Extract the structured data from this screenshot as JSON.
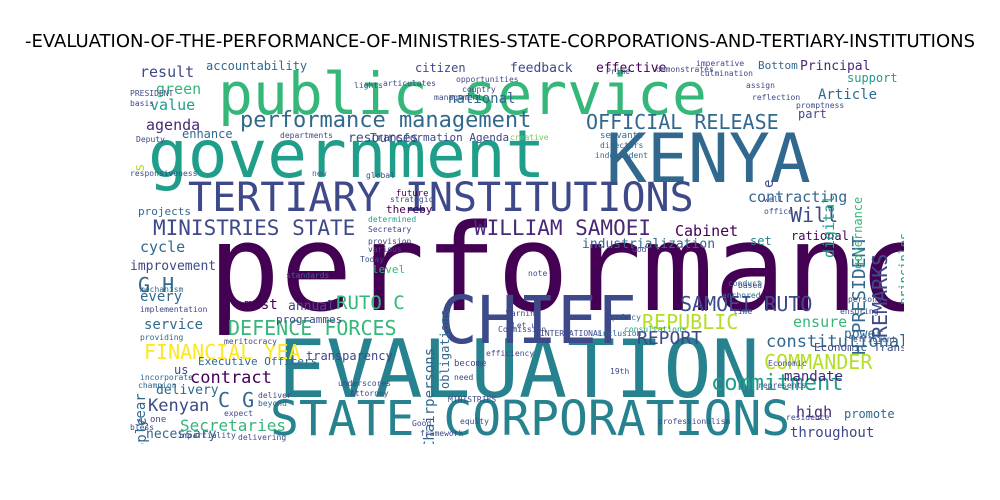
{
  "title": "-EVALUATION-OF-THE-PERFORMANCE-OF-MINISTRIES-STATE-CORPORATIONS-AND-TERTIARY-INSTITUTIONS",
  "palette": [
    "#440154",
    "#482878",
    "#3e4989",
    "#31688e",
    "#26828e",
    "#1f9e89",
    "#35b779",
    "#6ece58",
    "#b5de2b",
    "#fde725"
  ],
  "words": [
    {
      "text": "performance",
      "color": "#440154"
    },
    {
      "text": "public service",
      "color": "#35b779"
    },
    {
      "text": "government",
      "color": "#1f9e89"
    },
    {
      "text": "KENYA",
      "color": "#31688e"
    },
    {
      "text": "EVALUATION",
      "color": "#26828e"
    },
    {
      "text": "CHIEF",
      "color": "#3e4989"
    },
    {
      "text": "STATE CORPORATIONS",
      "color": "#26828e"
    },
    {
      "text": "TERTIARY INSTITUTIONS",
      "color": "#3e4989"
    },
    {
      "text": "performance management",
      "color": "#31688e"
    },
    {
      "text": "OFFICIAL RELEASE",
      "color": "#31688e"
    },
    {
      "text": "MINISTRIES STATE",
      "color": "#3e4989"
    },
    {
      "text": "WILLIAM SAMOEI",
      "color": "#482878"
    },
    {
      "text": "DEFENCE FORCES",
      "color": "#35b779"
    },
    {
      "text": "FINANCIAL YEA",
      "color": "#fde725"
    },
    {
      "text": "SAMOEI RUTO",
      "color": "#3e4989"
    },
    {
      "text": "REPUBLIC",
      "color": "#b5de2b"
    },
    {
      "text": "REPORT",
      "color": "#3e4989"
    },
    {
      "text": "commitment",
      "color": "#1f9e89"
    },
    {
      "text": "COMMANDER",
      "color": "#b5de2b"
    },
    {
      "text": "constitutional",
      "color": "#31688e"
    },
    {
      "text": "contract",
      "color": "#440154"
    },
    {
      "text": "Secretaries",
      "color": "#35b779"
    },
    {
      "text": "throughout",
      "color": "#3e4989"
    },
    {
      "text": "mandate",
      "color": "#482878"
    },
    {
      "text": "Kenyan",
      "color": "#3e4989"
    },
    {
      "text": "RUTO C",
      "color": "#35b779"
    },
    {
      "text": "C G",
      "color": "#31688e"
    },
    {
      "text": "G H",
      "color": "#31688e"
    },
    {
      "text": "Cabinet",
      "color": "#440154"
    },
    {
      "text": "contracting",
      "color": "#31688e"
    },
    {
      "text": "Will",
      "color": "#3e4989"
    },
    {
      "text": "high",
      "color": "#482878"
    },
    {
      "text": "ensure",
      "color": "#35b779"
    },
    {
      "text": "promote",
      "color": "#31688e"
    },
    {
      "text": "agenda",
      "color": "#482878"
    },
    {
      "text": "value",
      "color": "#1f9e89"
    },
    {
      "text": "green",
      "color": "#35b779"
    },
    {
      "text": "result",
      "color": "#3e4989"
    },
    {
      "text": "accountability",
      "color": "#31688e"
    },
    {
      "text": "citizen",
      "color": "#3e4989"
    },
    {
      "text": "feedback",
      "color": "#3e4989"
    },
    {
      "text": "effective",
      "color": "#440154"
    },
    {
      "text": "Bottom",
      "color": "#31688e"
    },
    {
      "text": "Principal",
      "color": "#482878"
    },
    {
      "text": "support",
      "color": "#1f9e89"
    },
    {
      "text": "Article",
      "color": "#31688e"
    },
    {
      "text": "national",
      "color": "#31688e"
    },
    {
      "text": "resources",
      "color": "#3e4989"
    },
    {
      "text": "enhance",
      "color": "#31688e"
    },
    {
      "text": "cycle",
      "color": "#31688e"
    },
    {
      "text": "improvement",
      "color": "#3e4989"
    },
    {
      "text": "every",
      "color": "#31688e"
    },
    {
      "text": "projects",
      "color": "#31688e"
    },
    {
      "text": "industrialization",
      "color": "#31688e"
    },
    {
      "text": "thereby",
      "color": "#440154"
    },
    {
      "text": "future",
      "color": "#440154"
    },
    {
      "text": "set",
      "color": "#26828e"
    },
    {
      "text": "part",
      "color": "#3e4989"
    },
    {
      "text": "rational",
      "color": "#440154"
    },
    {
      "text": "annual",
      "color": "#3e4989"
    },
    {
      "text": "must",
      "color": "#440154"
    },
    {
      "text": "programmes",
      "color": "#3e4989"
    },
    {
      "text": "transparency",
      "color": "#3e4989"
    },
    {
      "text": "level",
      "color": "#35b779"
    },
    {
      "text": "service",
      "color": "#31688e"
    },
    {
      "text": "delivery",
      "color": "#31688e"
    },
    {
      "text": "us",
      "color": "#3e4989"
    },
    {
      "text": "Executive Officers",
      "color": "#31688e"
    },
    {
      "text": "power",
      "color": "#31688e"
    },
    {
      "text": "Economic Transformation",
      "color": "#3e4989"
    },
    {
      "text": "necessary",
      "color": "#31688e"
    },
    {
      "text": "Transformation Agenda",
      "color": "#3e4989"
    },
    {
      "text": "departments",
      "color": "#3e4989"
    },
    {
      "text": "year",
      "color": "#31688e"
    },
    {
      "text": "people",
      "color": "#31688e"
    },
    {
      "text": "Chairpersons",
      "color": "#31688e"
    },
    {
      "text": "obligations",
      "color": "#31688e"
    },
    {
      "text": "REMARKS",
      "color": "#3e4989"
    },
    {
      "text": "H PRESIDENT",
      "color": "#31688e"
    },
    {
      "text": "digital",
      "color": "#1f9e89"
    },
    {
      "text": "governance",
      "color": "#35b779"
    },
    {
      "text": "principles",
      "color": "#1f9e89"
    },
    {
      "text": "e",
      "color": "#3e4989"
    },
    {
      "text": "s",
      "color": "#b5de2b"
    },
    {
      "text": "opportunities",
      "color": "#3e4989"
    },
    {
      "text": "country",
      "color": "#3e4989"
    },
    {
      "text": "creative",
      "color": "#6ece58"
    },
    {
      "text": "servants",
      "color": "#31688e"
    },
    {
      "text": "directors",
      "color": "#31688e"
    },
    {
      "text": "independent",
      "color": "#31688e"
    },
    {
      "text": "strategic",
      "color": "#3e4989"
    },
    {
      "text": "global",
      "color": "#3e4989"
    },
    {
      "text": "new",
      "color": "#31688e"
    },
    {
      "text": "Secretary",
      "color": "#3e4989"
    },
    {
      "text": "determined",
      "color": "#1f9e89"
    },
    {
      "text": "provision",
      "color": "#3e4989"
    },
    {
      "text": "various",
      "color": "#3e4989"
    },
    {
      "text": "Today",
      "color": "#3e4989"
    },
    {
      "text": "standards",
      "color": "#31688e"
    },
    {
      "text": "mechanism",
      "color": "#31688e"
    },
    {
      "text": "implementation",
      "color": "#3e4989"
    },
    {
      "text": "providing",
      "color": "#31688e"
    },
    {
      "text": "incorporate",
      "color": "#31688e"
    },
    {
      "text": "champion",
      "color": "#31688e"
    },
    {
      "text": "expect",
      "color": "#3e4989"
    },
    {
      "text": "beyond",
      "color": "#31688e"
    },
    {
      "text": "deliver",
      "color": "#3e4989"
    },
    {
      "text": "become",
      "color": "#3e4989"
    },
    {
      "text": "need",
      "color": "#3e4989"
    },
    {
      "text": "efficiency",
      "color": "#3e4989"
    },
    {
      "text": "note",
      "color": "#3e4989"
    },
    {
      "text": "God",
      "color": "#3e4989"
    },
    {
      "text": "consultations",
      "color": "#1f9e89"
    },
    {
      "text": "inclusion",
      "color": "#31688e"
    },
    {
      "text": "policy",
      "color": "#31688e"
    },
    {
      "text": "conduct",
      "color": "#31688e"
    },
    {
      "text": "anchored",
      "color": "#31688e"
    },
    {
      "text": "based",
      "color": "#3e4989"
    },
    {
      "text": "time",
      "color": "#3e4989"
    },
    {
      "text": "persons",
      "color": "#3e4989"
    },
    {
      "text": "ensuring",
      "color": "#3e4989"
    },
    {
      "text": "efficient",
      "color": "#3e4989"
    },
    {
      "text": "well",
      "color": "#3e4989"
    },
    {
      "text": "office",
      "color": "#3e4989"
    },
    {
      "text": "assign",
      "color": "#3e4989"
    },
    {
      "text": "reflection",
      "color": "#3e4989"
    },
    {
      "text": "promptness",
      "color": "#3e4989"
    },
    {
      "text": "PRESIDENT",
      "color": "#3e4989"
    },
    {
      "text": "basis",
      "color": "#3e4989"
    },
    {
      "text": "Deputy",
      "color": "#3e4989"
    },
    {
      "text": "lights",
      "color": "#3e4989"
    },
    {
      "text": "articulates",
      "color": "#3e4989"
    },
    {
      "text": "management",
      "color": "#3e4989"
    },
    {
      "text": "imperative",
      "color": "#3e4989"
    },
    {
      "text": "culmination",
      "color": "#3e4989"
    },
    {
      "text": "demonstrates",
      "color": "#3e4989"
    },
    {
      "text": "Prime",
      "color": "#3e4989"
    },
    {
      "text": "Good",
      "color": "#3e4989"
    },
    {
      "text": "equity",
      "color": "#3e4989"
    },
    {
      "text": "framework",
      "color": "#3e4989"
    },
    {
      "text": "delivering",
      "color": "#3e4989"
    },
    {
      "text": "impartiality",
      "color": "#3e4989"
    },
    {
      "text": "bless",
      "color": "#3e4989"
    },
    {
      "text": "Attorney",
      "color": "#3e4989"
    },
    {
      "text": "underscores",
      "color": "#3e4989"
    },
    {
      "text": "represents",
      "color": "#3e4989"
    },
    {
      "text": "responsiveness",
      "color": "#3e4989"
    },
    {
      "text": "Economic",
      "color": "#3e4989"
    },
    {
      "text": "residence",
      "color": "#3e4989"
    },
    {
      "text": "professionalism",
      "color": "#3e4989"
    },
    {
      "text": "19th",
      "color": "#3e4989"
    },
    {
      "text": "Warning",
      "color": "#3e4989"
    },
    {
      "text": "MINISTRIES",
      "color": "#3e4989"
    },
    {
      "text": "INTERNATIONAL",
      "color": "#3e4989"
    },
    {
      "text": "Commission",
      "color": "#3e4989"
    },
    {
      "text": "meritocracy",
      "color": "#3e4989"
    },
    {
      "text": "Let us",
      "color": "#3e4989"
    },
    {
      "text": "one",
      "color": "#3e4989"
    },
    {
      "text": "y",
      "color": "#3e4989"
    }
  ]
}
